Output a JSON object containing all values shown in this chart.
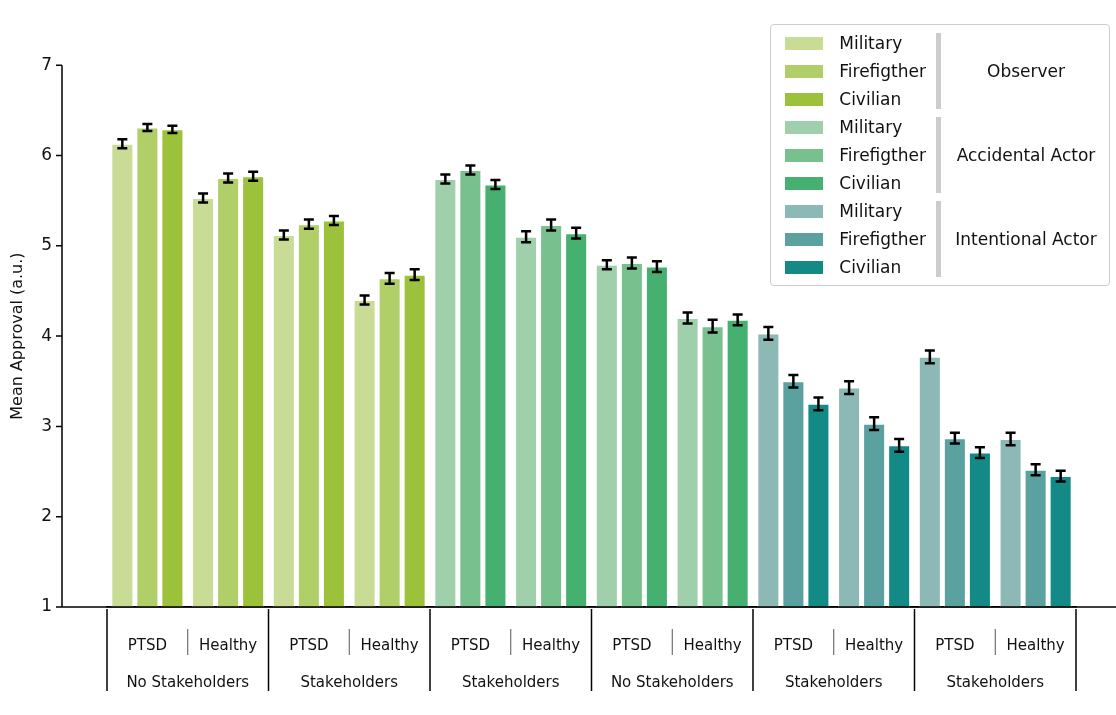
{
  "chart_data": {
    "type": "bar",
    "ylabel": "Mean Approval (a.u.)",
    "categories": [
      "PTSD",
      "Healthy",
      "PTSD",
      "Healthy",
      "PTSD",
      "Healthy",
      "PTSD",
      "Healthy",
      "PTSD",
      "Healthy",
      "PTSD",
      "Healthy"
    ],
    "ylim": [
      1,
      7
    ],
    "yticks": [
      1,
      2,
      3,
      4,
      5,
      6,
      7
    ],
    "grid": false,
    "legend": "top right",
    "annotations": [
      "No Stakeholders",
      "Stakeholders",
      "Stakeholders",
      "No Stakeholders",
      "Stakeholders",
      "Stakeholders",
      "Observer",
      "Accidental Actor",
      "Intentional Actor"
    ],
    "series": [
      {
        "name": "Military",
        "color": "#c8dc96",
        "values": [
          6.13,
          5.53,
          5.12,
          4.4,
          null,
          null,
          null,
          null,
          null,
          null,
          null,
          null
        ],
        "errors": [
          0.05,
          0.05,
          0.05,
          0.05,
          null,
          null,
          null,
          null,
          null,
          null,
          null,
          null
        ]
      },
      {
        "name": "Firefigther",
        "color": "#b1cf68",
        "values": [
          6.31,
          5.75,
          5.24,
          4.64,
          null,
          null,
          null,
          null,
          null,
          null,
          null,
          null
        ],
        "errors": [
          0.04,
          0.05,
          0.05,
          0.06,
          null,
          null,
          null,
          null,
          null,
          null,
          null,
          null
        ]
      },
      {
        "name": "Civilian",
        "color": "#9bc23a",
        "values": [
          6.29,
          5.77,
          5.28,
          4.68,
          null,
          null,
          null,
          null,
          null,
          null,
          null,
          null
        ],
        "errors": [
          0.04,
          0.05,
          0.05,
          0.06,
          null,
          null,
          null,
          null,
          null,
          null,
          null,
          null
        ]
      },
      {
        "name": "Military",
        "color": "#a0d0ab",
        "values": [
          null,
          null,
          null,
          null,
          5.74,
          5.1,
          4.79,
          4.2,
          null,
          null,
          null,
          null
        ],
        "errors": [
          null,
          null,
          null,
          null,
          0.05,
          0.06,
          0.05,
          0.06,
          null,
          null,
          null,
          null
        ]
      },
      {
        "name": "Firefigther",
        "color": "#78c08e",
        "values": [
          null,
          null,
          null,
          null,
          5.84,
          5.23,
          4.81,
          4.11,
          null,
          null,
          null,
          null
        ],
        "errors": [
          null,
          null,
          null,
          null,
          0.05,
          0.06,
          0.06,
          0.07,
          null,
          null,
          null,
          null
        ]
      },
      {
        "name": "Civilian",
        "color": "#45b06f",
        "values": [
          null,
          null,
          null,
          null,
          5.68,
          5.14,
          4.77,
          4.18,
          null,
          null,
          null,
          null
        ],
        "errors": [
          null,
          null,
          null,
          null,
          0.05,
          0.06,
          0.06,
          0.06,
          null,
          null,
          null,
          null
        ]
      },
      {
        "name": "Military",
        "color": "#8cb8b6",
        "values": [
          null,
          null,
          null,
          null,
          null,
          null,
          null,
          null,
          4.03,
          3.43,
          3.77,
          2.86
        ],
        "errors": [
          null,
          null,
          null,
          null,
          null,
          null,
          null,
          null,
          0.07,
          0.07,
          0.07,
          0.07
        ]
      },
      {
        "name": "Firefigther",
        "color": "#5aa1a0",
        "values": [
          null,
          null,
          null,
          null,
          null,
          null,
          null,
          null,
          3.5,
          3.03,
          2.87,
          2.52
        ],
        "errors": [
          null,
          null,
          null,
          null,
          null,
          null,
          null,
          null,
          0.07,
          0.07,
          0.06,
          0.06
        ]
      },
      {
        "name": "Civilian",
        "color": "#148a87",
        "values": [
          null,
          null,
          null,
          null,
          null,
          null,
          null,
          null,
          3.25,
          2.79,
          2.71,
          2.45
        ],
        "errors": [
          null,
          null,
          null,
          null,
          null,
          null,
          null,
          null,
          0.07,
          0.07,
          0.06,
          0.06
        ]
      }
    ]
  }
}
